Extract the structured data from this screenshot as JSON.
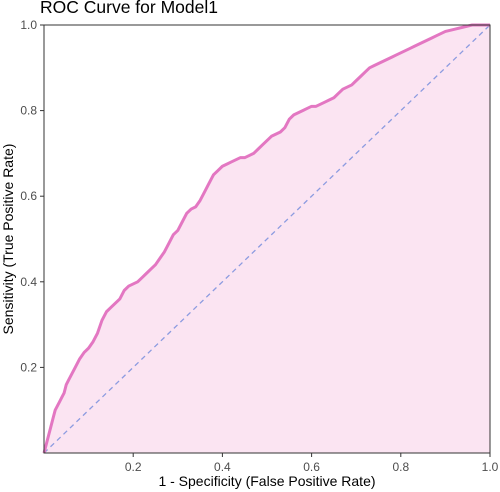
{
  "chart_data": {
    "type": "area",
    "title": "ROC Curve for Model1",
    "xlabel": "1 - Specificity (False Positive Rate)",
    "ylabel": "Sensitivity (True Positive Rate)",
    "xlim": [
      0,
      1
    ],
    "ylim": [
      0,
      1
    ],
    "x_ticks": [
      0.2,
      0.4,
      0.6,
      0.8,
      1.0
    ],
    "y_ticks": [
      0.2,
      0.4,
      0.6,
      0.8,
      1.0
    ],
    "x_tick_labels": [
      "0.2",
      "0.4",
      "0.6",
      "0.8",
      "1.0"
    ],
    "y_tick_labels": [
      "0.2",
      "0.4",
      "0.6",
      "0.8",
      "1.0"
    ],
    "grid": false,
    "colors": {
      "curve": "#e377c2",
      "fill": "#fbe4f2",
      "diagonal": "#8c9be0"
    },
    "series": [
      {
        "x": [
          0,
          0.005,
          0.01,
          0.015,
          0.02,
          0.025,
          0.03,
          0.035,
          0.04,
          0.045,
          0.05,
          0.055,
          0.06,
          0.07,
          0.08,
          0.09,
          0.1,
          0.11,
          0.12,
          0.13,
          0.14,
          0.15,
          0.16,
          0.17,
          0.18,
          0.19,
          0.2,
          0.21,
          0.22,
          0.23,
          0.24,
          0.25,
          0.26,
          0.27,
          0.28,
          0.29,
          0.3,
          0.31,
          0.32,
          0.33,
          0.34,
          0.35,
          0.36,
          0.37,
          0.38,
          0.39,
          0.4,
          0.41,
          0.42,
          0.43,
          0.44,
          0.45,
          0.46,
          0.47,
          0.48,
          0.49,
          0.5,
          0.51,
          0.52,
          0.53,
          0.54,
          0.55,
          0.56,
          0.57,
          0.58,
          0.59,
          0.6,
          0.61,
          0.62,
          0.63,
          0.64,
          0.65,
          0.66,
          0.67,
          0.68,
          0.69,
          0.7,
          0.71,
          0.72,
          0.73,
          0.74,
          0.75,
          0.76,
          0.77,
          0.78,
          0.79,
          0.8,
          0.81,
          0.82,
          0.83,
          0.84,
          0.85,
          0.86,
          0.87,
          0.88,
          0.89,
          0.9,
          0.92,
          0.94,
          0.96,
          0.98,
          1.0
        ],
        "y": [
          0,
          0.02,
          0.04,
          0.06,
          0.08,
          0.1,
          0.11,
          0.12,
          0.13,
          0.14,
          0.16,
          0.17,
          0.18,
          0.2,
          0.22,
          0.235,
          0.245,
          0.26,
          0.28,
          0.31,
          0.33,
          0.34,
          0.35,
          0.36,
          0.38,
          0.39,
          0.395,
          0.4,
          0.41,
          0.42,
          0.43,
          0.44,
          0.455,
          0.47,
          0.49,
          0.51,
          0.52,
          0.54,
          0.56,
          0.57,
          0.575,
          0.59,
          0.61,
          0.63,
          0.65,
          0.66,
          0.67,
          0.675,
          0.68,
          0.685,
          0.69,
          0.69,
          0.695,
          0.7,
          0.71,
          0.72,
          0.73,
          0.74,
          0.745,
          0.75,
          0.76,
          0.78,
          0.79,
          0.795,
          0.8,
          0.805,
          0.81,
          0.81,
          0.815,
          0.82,
          0.825,
          0.83,
          0.84,
          0.85,
          0.855,
          0.86,
          0.87,
          0.88,
          0.89,
          0.9,
          0.905,
          0.91,
          0.915,
          0.92,
          0.925,
          0.93,
          0.935,
          0.94,
          0.945,
          0.95,
          0.955,
          0.96,
          0.965,
          0.97,
          0.975,
          0.98,
          0.985,
          0.99,
          0.995,
          1.0,
          1.0,
          1.0
        ]
      }
    ]
  }
}
